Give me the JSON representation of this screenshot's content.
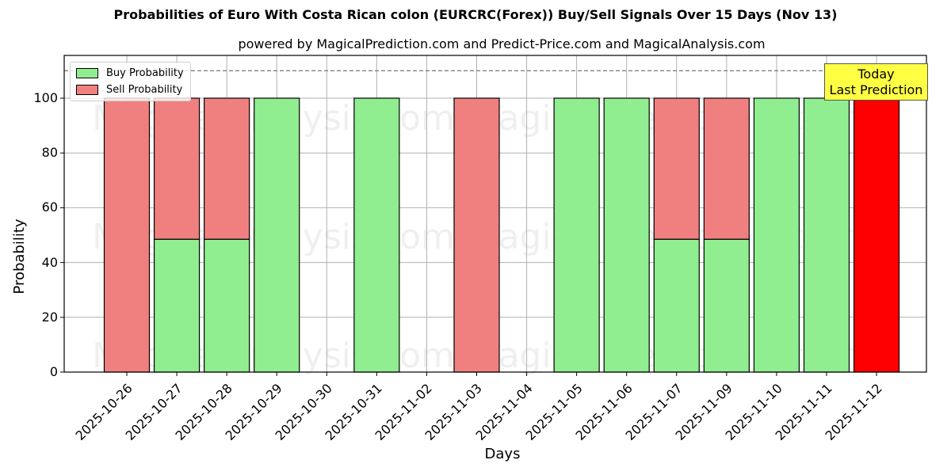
{
  "title": "Probabilities of Euro With Costa Rican colon (EURCRC(Forex)) Buy/Sell Signals Over 15 Days (Nov 13)",
  "subtitle": "powered by MagicalPrediction.com and Predict-Price.com and MagicalAnalysis.com",
  "watermarks": [
    "MagicalAnalysis.com",
    "MagicalPrediction.com"
  ],
  "annotation": {
    "line1": "Today",
    "line2": "Last Prediction"
  },
  "legend": {
    "buy": "Buy Probability",
    "sell": "Sell Probability"
  },
  "colors": {
    "buy": "#90ee90",
    "sell": "#f08080",
    "today_sell": "#ff0000",
    "annotation_bg": "#ffff44"
  },
  "chart_data": {
    "type": "bar",
    "stacked": true,
    "title": "Probabilities of Euro With Costa Rican colon (EURCRC(Forex)) Buy/Sell Signals Over 15 Days (Nov 13)",
    "subtitle": "powered by MagicalPrediction.com and Predict-Price.com and MagicalAnalysis.com",
    "xlabel": "Days",
    "ylabel": "Probability",
    "ylim": [
      0,
      115
    ],
    "yticks": [
      0,
      20,
      40,
      60,
      80,
      100
    ],
    "reference_line": 110,
    "grid": true,
    "legend_position": "upper left",
    "categories": [
      "2025-10-26",
      "2025-10-27",
      "2025-10-28",
      "2025-10-29",
      "2025-10-30",
      "2025-10-31",
      "2025-11-02",
      "2025-11-03",
      "2025-11-04",
      "2025-11-05",
      "2025-11-06",
      "2025-11-07",
      "2025-11-09",
      "2025-11-10",
      "2025-11-11",
      "2025-11-12"
    ],
    "series": [
      {
        "name": "Buy Probability",
        "values": [
          0,
          48.5,
          48.5,
          100,
          0,
          100,
          0,
          0,
          0,
          100,
          100,
          48.5,
          48.5,
          100,
          100,
          0
        ]
      },
      {
        "name": "Sell Probability",
        "values": [
          100,
          51.5,
          51.5,
          0,
          0,
          0,
          0,
          100,
          0,
          0,
          0,
          51.5,
          51.5,
          0,
          0,
          100
        ]
      }
    ],
    "annotations": [
      "Today",
      "Last Prediction"
    ]
  }
}
